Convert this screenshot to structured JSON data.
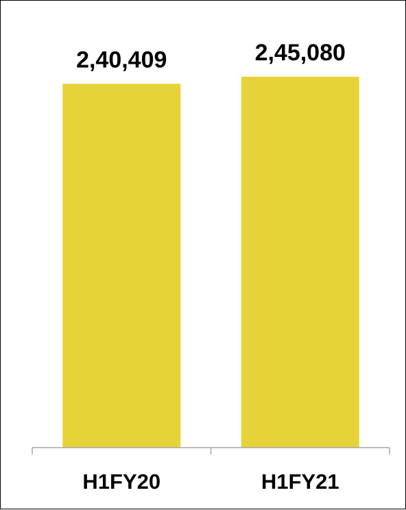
{
  "chart_data": {
    "type": "bar",
    "categories": [
      "H1FY20",
      "H1FY21"
    ],
    "values": [
      240409,
      245080
    ],
    "value_labels": [
      "2,40,409",
      "2,45,080"
    ],
    "bar_color": "#E6D337",
    "ylim": [
      0,
      260000
    ],
    "grid": false,
    "legend": "none"
  }
}
